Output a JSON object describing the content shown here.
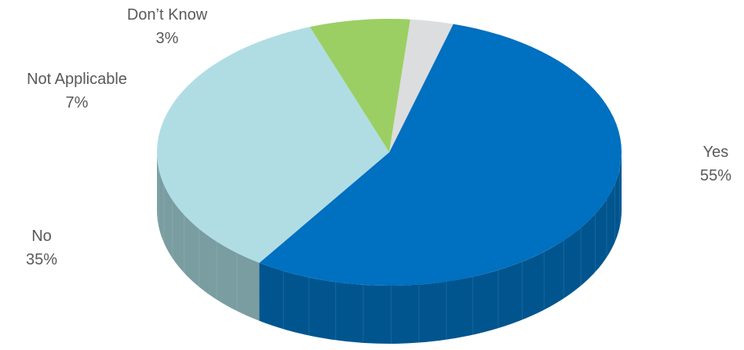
{
  "chart_data": {
    "type": "pie",
    "three_d": true,
    "title": "",
    "legend": "none",
    "start_clockwise_from": "Yes",
    "slices": [
      {
        "label": "Yes",
        "value": 55,
        "value_label": "55%",
        "color": "#0070C0",
        "side_color": "#00558F"
      },
      {
        "label": "No",
        "value": 35,
        "value_label": "35%",
        "color": "#B0DDE4",
        "side_color": "#7A9DA2"
      },
      {
        "label": "Not Applicable",
        "value": 7,
        "value_label": "7%",
        "color": "#9BCF63",
        "side_color": "#6E9A45"
      },
      {
        "label": "Don’t Know",
        "value": 3,
        "value_label": "3%",
        "color": "#DCDDDF",
        "side_color": "#A8A9AB"
      }
    ]
  }
}
